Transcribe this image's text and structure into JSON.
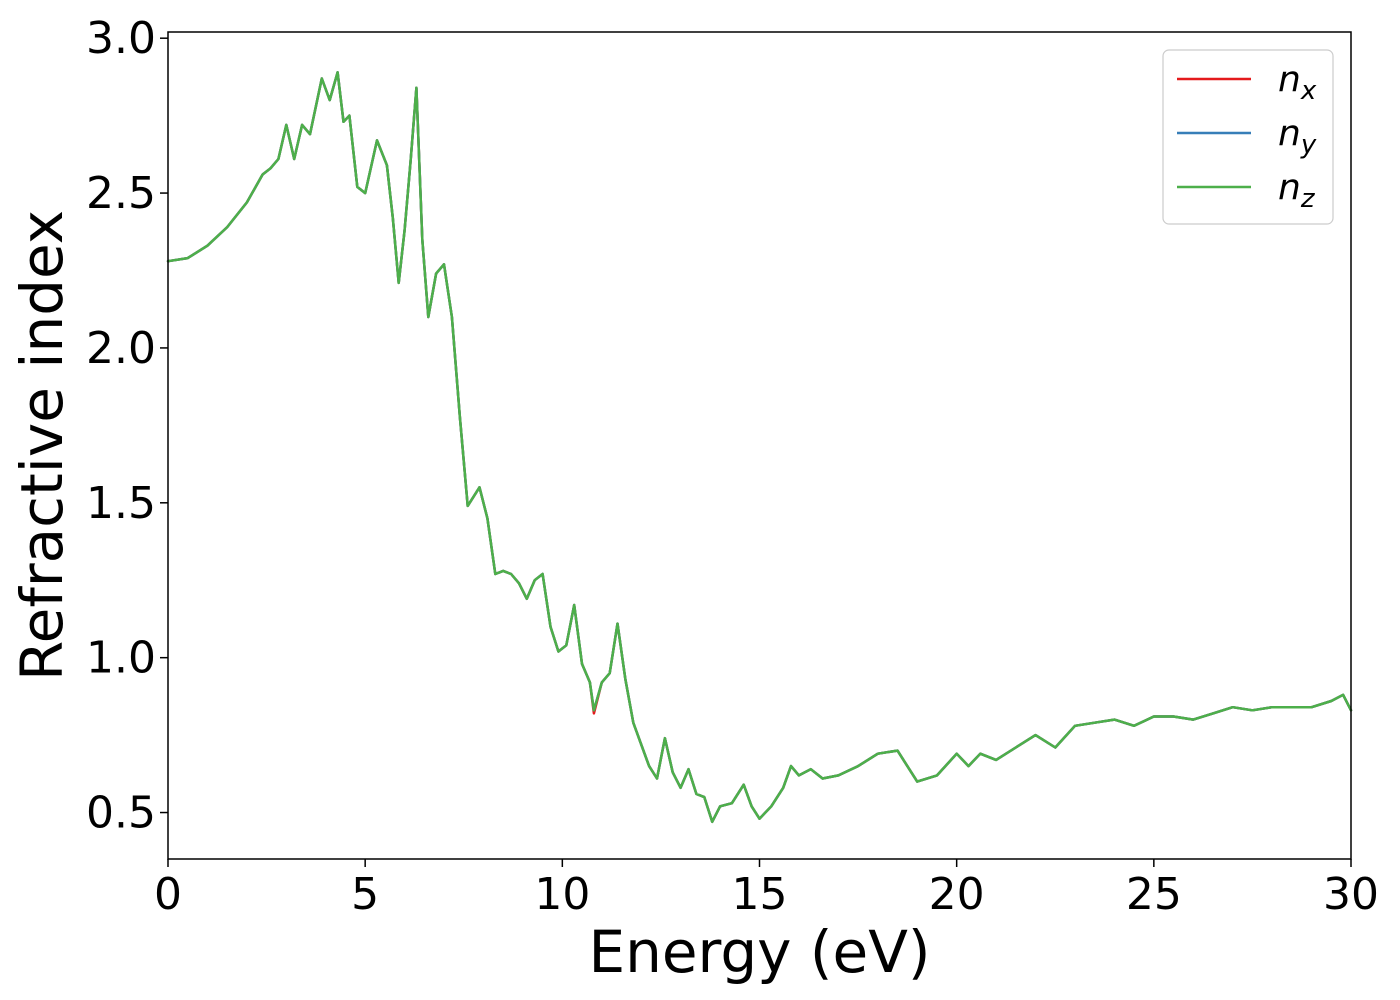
{
  "chart_data": {
    "type": "line",
    "xlabel": "Energy (eV)",
    "ylabel": "Refractive index",
    "xlim": [
      0,
      30
    ],
    "ylim": [
      0.35,
      3.02
    ],
    "x_ticks": [
      0,
      5,
      10,
      15,
      20,
      25,
      30
    ],
    "x_tick_labels": [
      "0",
      "5",
      "10",
      "15",
      "20",
      "25",
      "30"
    ],
    "y_ticks": [
      0.5,
      1.0,
      1.5,
      2.0,
      2.5,
      3.0
    ],
    "y_tick_labels": [
      "0.5",
      "1.0",
      "1.5",
      "2.0",
      "2.5",
      "3.0"
    ],
    "grid": false,
    "legend_position": "top-right",
    "x": [
      0,
      0.5,
      1.0,
      1.5,
      2.0,
      2.4,
      2.6,
      2.8,
      3.0,
      3.2,
      3.4,
      3.6,
      3.9,
      4.1,
      4.3,
      4.45,
      4.6,
      4.8,
      5.0,
      5.3,
      5.55,
      5.7,
      5.85,
      6.0,
      6.15,
      6.3,
      6.45,
      6.6,
      6.8,
      7.0,
      7.2,
      7.4,
      7.6,
      7.9,
      8.1,
      8.3,
      8.5,
      8.7,
      8.9,
      9.1,
      9.3,
      9.5,
      9.7,
      9.9,
      10.1,
      10.3,
      10.5,
      10.7,
      10.8,
      11.0,
      11.2,
      11.4,
      11.6,
      11.8,
      12.0,
      12.2,
      12.4,
      12.6,
      12.8,
      13.0,
      13.2,
      13.4,
      13.6,
      13.8,
      14.0,
      14.3,
      14.6,
      14.8,
      15.0,
      15.3,
      15.6,
      15.8,
      16.0,
      16.3,
      16.6,
      17.0,
      17.5,
      18.0,
      18.5,
      19.0,
      19.5,
      20.0,
      20.3,
      20.6,
      21.0,
      21.5,
      22.0,
      22.5,
      23.0,
      23.5,
      24.0,
      24.5,
      25.0,
      25.5,
      26.0,
      26.5,
      27.0,
      27.5,
      28.0,
      28.5,
      29.0,
      29.5,
      29.8,
      30.0
    ],
    "series": [
      {
        "name": "n_x",
        "color": "#e41a1c",
        "values": [
          2.28,
          2.29,
          2.33,
          2.39,
          2.47,
          2.56,
          2.58,
          2.61,
          2.72,
          2.61,
          2.72,
          2.69,
          2.87,
          2.8,
          2.89,
          2.73,
          2.75,
          2.52,
          2.5,
          2.67,
          2.59,
          2.42,
          2.21,
          2.38,
          2.6,
          2.84,
          2.35,
          2.1,
          2.24,
          2.27,
          2.1,
          1.78,
          1.49,
          1.55,
          1.45,
          1.27,
          1.28,
          1.27,
          1.24,
          1.19,
          1.25,
          1.27,
          1.1,
          1.02,
          1.04,
          1.17,
          0.98,
          0.92,
          0.82,
          0.92,
          0.95,
          1.11,
          0.93,
          0.79,
          0.72,
          0.65,
          0.61,
          0.74,
          0.63,
          0.58,
          0.64,
          0.56,
          0.55,
          0.47,
          0.52,
          0.53,
          0.59,
          0.52,
          0.48,
          0.52,
          0.58,
          0.65,
          0.62,
          0.64,
          0.61,
          0.62,
          0.65,
          0.69,
          0.7,
          0.6,
          0.62,
          0.69,
          0.65,
          0.69,
          0.67,
          0.71,
          0.75,
          0.71,
          0.78,
          0.79,
          0.8,
          0.78,
          0.81,
          0.81,
          0.8,
          0.82,
          0.84,
          0.83,
          0.84,
          0.84,
          0.84,
          0.86,
          0.88,
          0.83
        ]
      },
      {
        "name": "n_y",
        "color": "#377eb8",
        "values": [
          2.28,
          2.29,
          2.33,
          2.39,
          2.47,
          2.56,
          2.58,
          2.61,
          2.72,
          2.61,
          2.72,
          2.69,
          2.87,
          2.8,
          2.89,
          2.73,
          2.75,
          2.52,
          2.5,
          2.67,
          2.59,
          2.42,
          2.21,
          2.38,
          2.6,
          2.84,
          2.35,
          2.1,
          2.24,
          2.27,
          2.1,
          1.78,
          1.49,
          1.55,
          1.45,
          1.27,
          1.28,
          1.27,
          1.24,
          1.19,
          1.25,
          1.27,
          1.1,
          1.02,
          1.04,
          1.17,
          0.98,
          0.92,
          0.83,
          0.92,
          0.95,
          1.11,
          0.93,
          0.79,
          0.72,
          0.65,
          0.61,
          0.74,
          0.63,
          0.58,
          0.64,
          0.56,
          0.55,
          0.47,
          0.52,
          0.53,
          0.59,
          0.52,
          0.48,
          0.52,
          0.58,
          0.65,
          0.62,
          0.64,
          0.61,
          0.62,
          0.65,
          0.69,
          0.7,
          0.6,
          0.62,
          0.69,
          0.65,
          0.69,
          0.67,
          0.71,
          0.75,
          0.71,
          0.78,
          0.79,
          0.8,
          0.78,
          0.81,
          0.81,
          0.8,
          0.82,
          0.84,
          0.83,
          0.84,
          0.84,
          0.84,
          0.86,
          0.88,
          0.83
        ]
      },
      {
        "name": "n_z",
        "color": "#4daf4a",
        "values": [
          2.28,
          2.29,
          2.33,
          2.39,
          2.47,
          2.56,
          2.58,
          2.61,
          2.72,
          2.61,
          2.72,
          2.69,
          2.87,
          2.8,
          2.89,
          2.73,
          2.75,
          2.52,
          2.5,
          2.67,
          2.59,
          2.42,
          2.21,
          2.38,
          2.6,
          2.84,
          2.35,
          2.1,
          2.24,
          2.27,
          2.1,
          1.78,
          1.49,
          1.55,
          1.45,
          1.27,
          1.28,
          1.27,
          1.24,
          1.19,
          1.25,
          1.27,
          1.1,
          1.02,
          1.04,
          1.17,
          0.98,
          0.92,
          0.83,
          0.92,
          0.95,
          1.11,
          0.93,
          0.79,
          0.72,
          0.65,
          0.61,
          0.74,
          0.63,
          0.58,
          0.64,
          0.56,
          0.55,
          0.47,
          0.52,
          0.53,
          0.59,
          0.52,
          0.48,
          0.52,
          0.58,
          0.65,
          0.62,
          0.64,
          0.61,
          0.62,
          0.65,
          0.69,
          0.7,
          0.6,
          0.62,
          0.69,
          0.65,
          0.69,
          0.67,
          0.71,
          0.75,
          0.71,
          0.78,
          0.79,
          0.8,
          0.78,
          0.81,
          0.81,
          0.8,
          0.82,
          0.84,
          0.83,
          0.84,
          0.84,
          0.84,
          0.86,
          0.88,
          0.83
        ]
      }
    ],
    "legend": [
      {
        "base": "n",
        "sub": "x",
        "color": "#e41a1c"
      },
      {
        "base": "n",
        "sub": "y",
        "color": "#377eb8"
      },
      {
        "base": "n",
        "sub": "z",
        "color": "#4daf4a"
      }
    ]
  }
}
